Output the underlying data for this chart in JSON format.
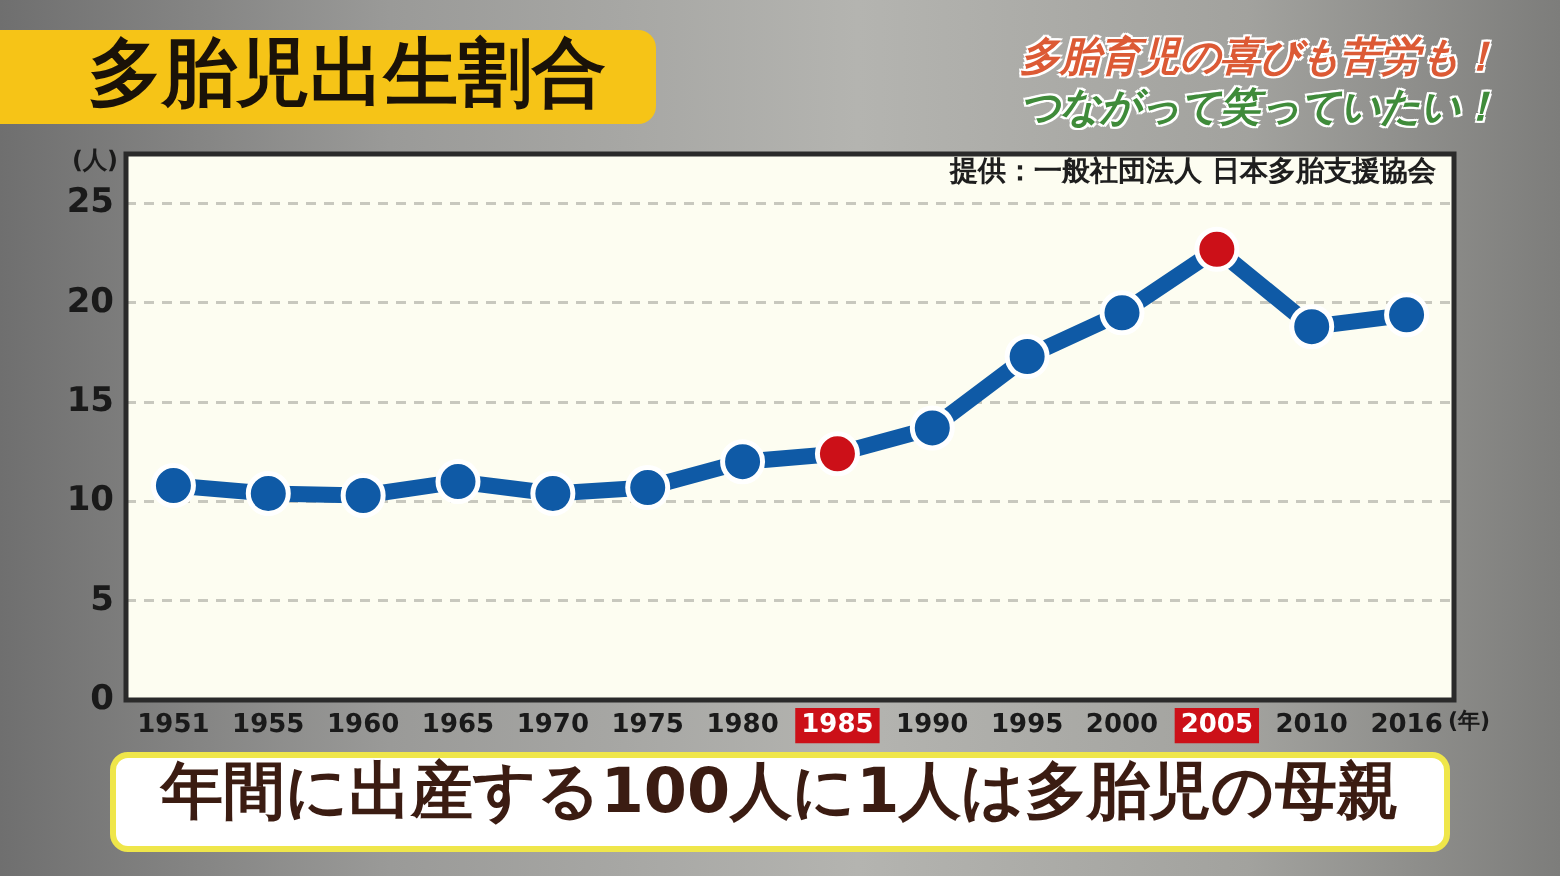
{
  "chart_data": {
    "type": "line",
    "title": "多胎児出生割合",
    "xlabel": "(年)",
    "ylabel": "(人)",
    "annotations": [
      "提供：一般社団法人 日本多胎支援協会",
      "多胎育児の喜びも苦労も！",
      "つながって笑っていたい！",
      "年間に出産する100人に1人は多胎児の母親"
    ],
    "categories": [
      "1951",
      "1955",
      "1960",
      "1965",
      "1970",
      "1975",
      "1980",
      "1985",
      "1990",
      "1995",
      "2000",
      "2005",
      "2010",
      "2016"
    ],
    "series": [
      {
        "color": "#0f5aa6",
        "colors": [
          "#0f5aa6",
          "#0f5aa6",
          "#0f5aa6",
          "#0f5aa6",
          "#0f5aa6",
          "#0f5aa6",
          "#0f5aa6",
          "#cc1018",
          "#0f5aa6",
          "#0f5aa6",
          "#0f5aa6",
          "#cc1018",
          "#0f5aa6",
          "#0f5aa6"
        ],
        "values": [
          10.8,
          10.4,
          10.3,
          11.0,
          10.4,
          10.7,
          12.0,
          12.4,
          13.7,
          17.3,
          19.5,
          22.7,
          18.8,
          19.4
        ]
      }
    ],
    "ylim": [
      0,
      27.5
    ],
    "yticks": [
      0,
      5,
      10,
      15,
      20,
      25
    ],
    "grid": "y",
    "marker": "circle",
    "line_style": "solid"
  }
}
